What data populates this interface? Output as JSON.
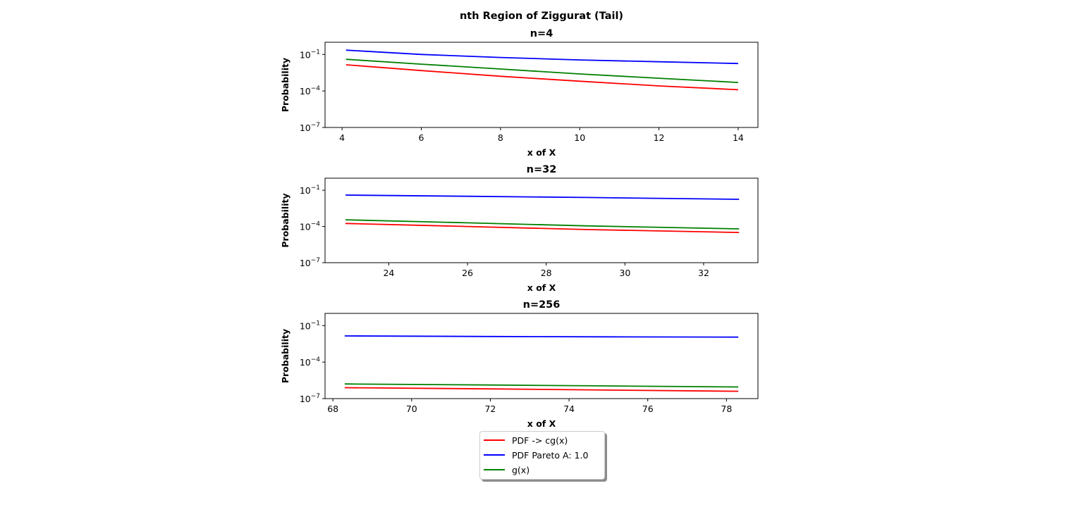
{
  "figure": {
    "suptitle": "nth Region of Ziggurat (Tail)"
  },
  "chart_data": [
    {
      "type": "line",
      "title": "n=4",
      "xlabel": "x of X",
      "ylabel": "Probability",
      "yscale": "log",
      "ylim": [
        1e-07,
        1
      ],
      "xlim": [
        3.57,
        14.5
      ],
      "xticks": [
        4,
        6,
        8,
        10,
        12,
        14
      ],
      "yticks": [
        "10^{-7}",
        "10^{-4}",
        "10^{-1}"
      ],
      "x": [
        4.1,
        14.0
      ],
      "series": [
        {
          "name": "PDF -> cg(x)",
          "color": "#ff0000",
          "values": [
            [
              4.1,
              0.0141
            ],
            [
              6.0,
              0.0047
            ],
            [
              8.0,
              0.0016
            ],
            [
              10.0,
              0.00063
            ],
            [
              12.0,
              0.00026
            ],
            [
              14.0,
              0.000126
            ]
          ]
        },
        {
          "name": "PDF Pareto A: 1.0",
          "color": "#0000ff",
          "values": [
            [
              4.1,
              0.224
            ],
            [
              6.0,
              0.1
            ],
            [
              8.0,
              0.0562
            ],
            [
              10.0,
              0.0355
            ],
            [
              12.0,
              0.0251
            ],
            [
              14.0,
              0.0178
            ]
          ]
        },
        {
          "name": "g(x)",
          "color": "#008000",
          "values": [
            [
              4.1,
              0.0398
            ],
            [
              6.0,
              0.0158
            ],
            [
              8.0,
              0.0063
            ],
            [
              10.0,
              0.0025
            ],
            [
              12.0,
              0.0011
            ],
            [
              14.0,
              0.0005
            ]
          ]
        }
      ]
    },
    {
      "type": "line",
      "title": "n=32",
      "xlabel": "x of X",
      "ylabel": "Probability",
      "yscale": "log",
      "ylim": [
        1e-07,
        1
      ],
      "xlim": [
        22.38,
        33.38
      ],
      "xticks": [
        24,
        26,
        28,
        30,
        32
      ],
      "yticks": [
        "10^{-7}",
        "10^{-4}",
        "10^{-1}"
      ],
      "series": [
        {
          "name": "PDF -> cg(x)",
          "color": "#ff0000",
          "values": [
            [
              22.9,
              0.000178
            ],
            [
              26.0,
              0.0001
            ],
            [
              29.0,
              5.62e-05
            ],
            [
              32.9,
              3.16e-05
            ]
          ]
        },
        {
          "name": "PDF Pareto A: 1.0",
          "color": "#0000ff",
          "values": [
            [
              22.9,
              0.0398
            ],
            [
              26.0,
              0.0316
            ],
            [
              29.0,
              0.0251
            ],
            [
              32.9,
              0.0178
            ]
          ]
        },
        {
          "name": "g(x)",
          "color": "#008000",
          "values": [
            [
              22.9,
              0.000355
            ],
            [
              26.0,
              0.0002
            ],
            [
              29.0,
              0.000112
            ],
            [
              32.9,
              6.31e-05
            ]
          ]
        }
      ]
    },
    {
      "type": "line",
      "title": "n=256",
      "xlabel": "x of X",
      "ylabel": "Probability",
      "yscale": "log",
      "ylim": [
        1e-07,
        1
      ],
      "xlim": [
        67.8,
        78.8
      ],
      "xticks": [
        68,
        70,
        72,
        74,
        76,
        78
      ],
      "yticks": [
        "10^{-7}",
        "10^{-4}",
        "10^{-1}"
      ],
      "series": [
        {
          "name": "PDF -> cg(x)",
          "color": "#ff0000",
          "values": [
            [
              68.3,
              7.9e-07
            ],
            [
              72.0,
              6.3e-07
            ],
            [
              75.0,
              5e-07
            ],
            [
              78.3,
              4e-07
            ]
          ]
        },
        {
          "name": "PDF Pareto A: 1.0",
          "color": "#0000ff",
          "values": [
            [
              68.3,
              0.0141
            ],
            [
              72.0,
              0.0126
            ],
            [
              75.0,
              0.0118
            ],
            [
              78.3,
              0.0112
            ]
          ]
        },
        {
          "name": "g(x)",
          "color": "#008000",
          "values": [
            [
              68.3,
              1.6e-06
            ],
            [
              72.0,
              1.3e-06
            ],
            [
              75.0,
              1.1e-06
            ],
            [
              78.3,
              9e-07
            ]
          ]
        }
      ]
    }
  ],
  "legend": {
    "placement": "bottom-center",
    "items": [
      {
        "label": "PDF -> cg(x)",
        "color": "#ff0000"
      },
      {
        "label": "PDF Pareto A: 1.0",
        "color": "#0000ff"
      },
      {
        "label": "g(x)",
        "color": "#008000"
      }
    ]
  }
}
